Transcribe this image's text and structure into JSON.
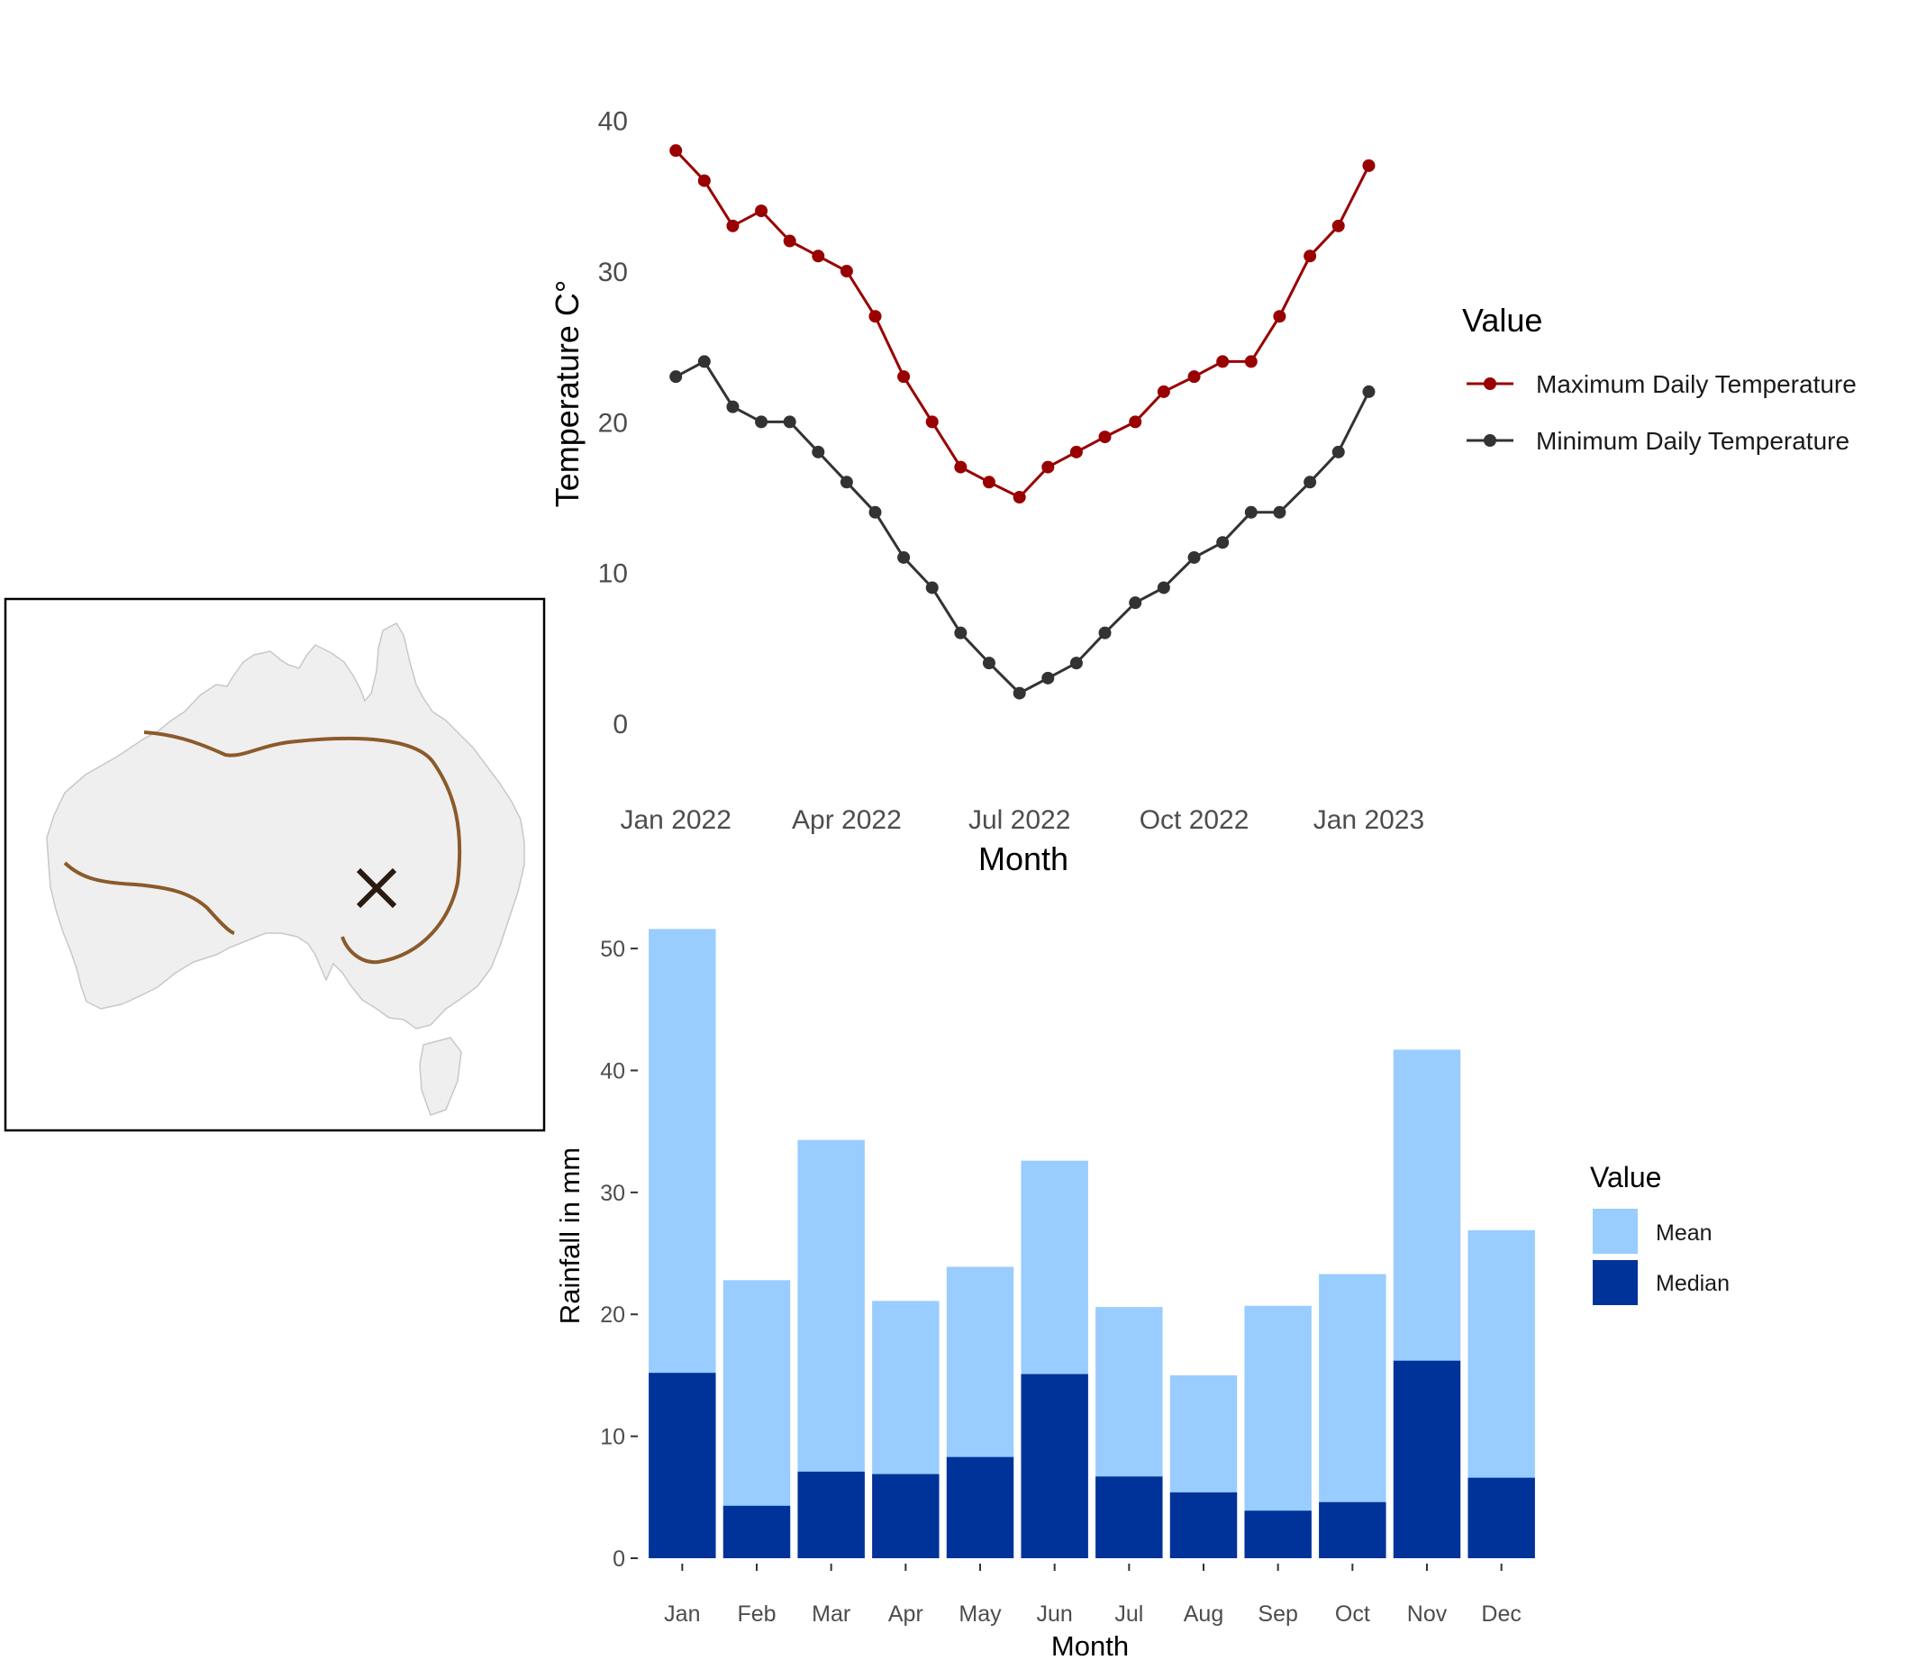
{
  "chart_data": [
    {
      "type": "line",
      "xlabel": "Month",
      "ylabel": "Temperature C°",
      "x_ticks": [
        "Jan 2022",
        "Apr 2022",
        "Jul 2022",
        "Oct 2022",
        "Jan 2023"
      ],
      "x_ticks_days": [
        0,
        90,
        181,
        273,
        365
      ],
      "y_ticks": [
        0,
        10,
        20,
        30,
        40
      ],
      "xlim_days": [
        -2,
        370
      ],
      "ylim": [
        -4,
        45
      ],
      "grid": false,
      "legend": {
        "title": "Value",
        "position": "right"
      },
      "colors": {
        "max": "#990000",
        "min": "#333333"
      },
      "series": [
        {
          "name": "Maximum Daily Temperature",
          "x_days": [
            0,
            15,
            30,
            45,
            60,
            75,
            90,
            105,
            120,
            135,
            150,
            165,
            181,
            196,
            211,
            226,
            242,
            257,
            273,
            288,
            303,
            318,
            334,
            349,
            365
          ],
          "values": [
            38,
            36,
            33,
            34,
            32,
            31,
            30,
            27,
            23,
            20,
            17,
            16,
            15,
            17,
            18,
            19,
            20,
            22,
            23,
            24,
            24,
            27,
            31,
            33,
            37
          ]
        },
        {
          "name": "Minimum Daily Temperature",
          "x_days": [
            0,
            15,
            30,
            45,
            60,
            75,
            90,
            105,
            120,
            135,
            150,
            165,
            181,
            196,
            211,
            226,
            242,
            257,
            273,
            288,
            303,
            318,
            334,
            349,
            365
          ],
          "values": [
            23,
            24,
            21,
            20,
            20,
            18,
            16,
            14,
            11,
            9,
            6,
            4,
            2,
            3,
            4,
            6,
            8,
            9,
            11,
            12,
            14,
            14,
            16,
            18,
            22
          ]
        }
      ]
    },
    {
      "type": "bar",
      "xlabel": "Month",
      "ylabel": "Rainfall in mm",
      "categories": [
        "Jan",
        "Feb",
        "Mar",
        "Apr",
        "May",
        "Jun",
        "Jul",
        "Aug",
        "Sep",
        "Oct",
        "Nov",
        "Dec"
      ],
      "y_ticks": [
        0,
        10,
        20,
        30,
        40,
        50
      ],
      "ylim": [
        0,
        52
      ],
      "grid": false,
      "legend": {
        "title": "Value",
        "position": "right"
      },
      "colors": {
        "mean": "#99ccff",
        "median": "#003399"
      },
      "series": [
        {
          "name": "Mean",
          "values": [
            51.6,
            22.8,
            34.3,
            21.1,
            23.9,
            32.6,
            20.6,
            15.0,
            20.7,
            23.3,
            41.7,
            26.9
          ]
        },
        {
          "name": "Median",
          "values": [
            15.2,
            4.3,
            7.1,
            6.9,
            8.3,
            15.1,
            6.7,
            5.4,
            3.9,
            4.6,
            16.2,
            6.6
          ]
        }
      ]
    }
  ],
  "map": {
    "land_color": "#efefef",
    "boundary_color": "#8b5a2b",
    "marker_icon": "x-mark-icon"
  }
}
